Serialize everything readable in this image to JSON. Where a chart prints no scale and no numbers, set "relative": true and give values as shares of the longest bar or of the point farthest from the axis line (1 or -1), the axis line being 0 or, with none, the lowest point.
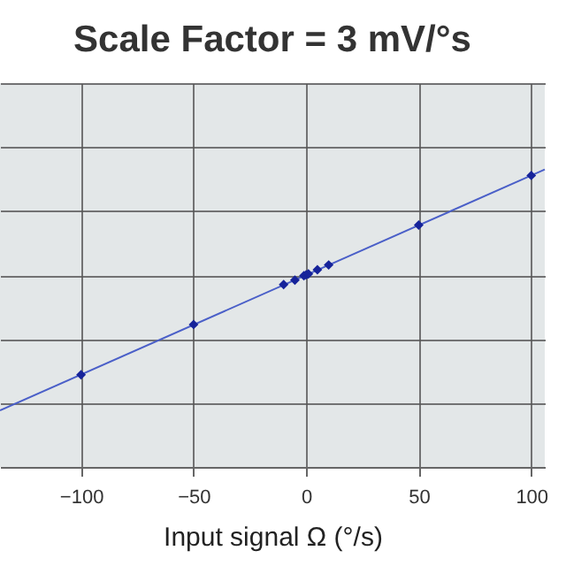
{
  "chart_data": {
    "type": "line",
    "title": "Scale Factor = 3 mV/°s",
    "xlabel": "Input signal Ω (°/s)",
    "relative": true,
    "grid": true,
    "xlim": [
      -136,
      106
    ],
    "xticks": [
      -100,
      -50,
      0,
      50,
      100
    ],
    "series": [
      {
        "color": "#4a5fc8",
        "marker": "none",
        "x": [
          -136,
          106
        ],
        "values": [
          0.19,
          1.0
        ]
      },
      {
        "type": "scatter",
        "color": "#16239a",
        "marker": "diamond",
        "x": [
          -100,
          -50,
          -10,
          -5,
          -1,
          0,
          1,
          5,
          10,
          50,
          100
        ],
        "values": [
          0.31,
          0.479,
          0.613,
          0.628,
          0.643,
          0.646,
          0.649,
          0.663,
          0.679,
          0.813,
          0.98
        ]
      }
    ]
  }
}
